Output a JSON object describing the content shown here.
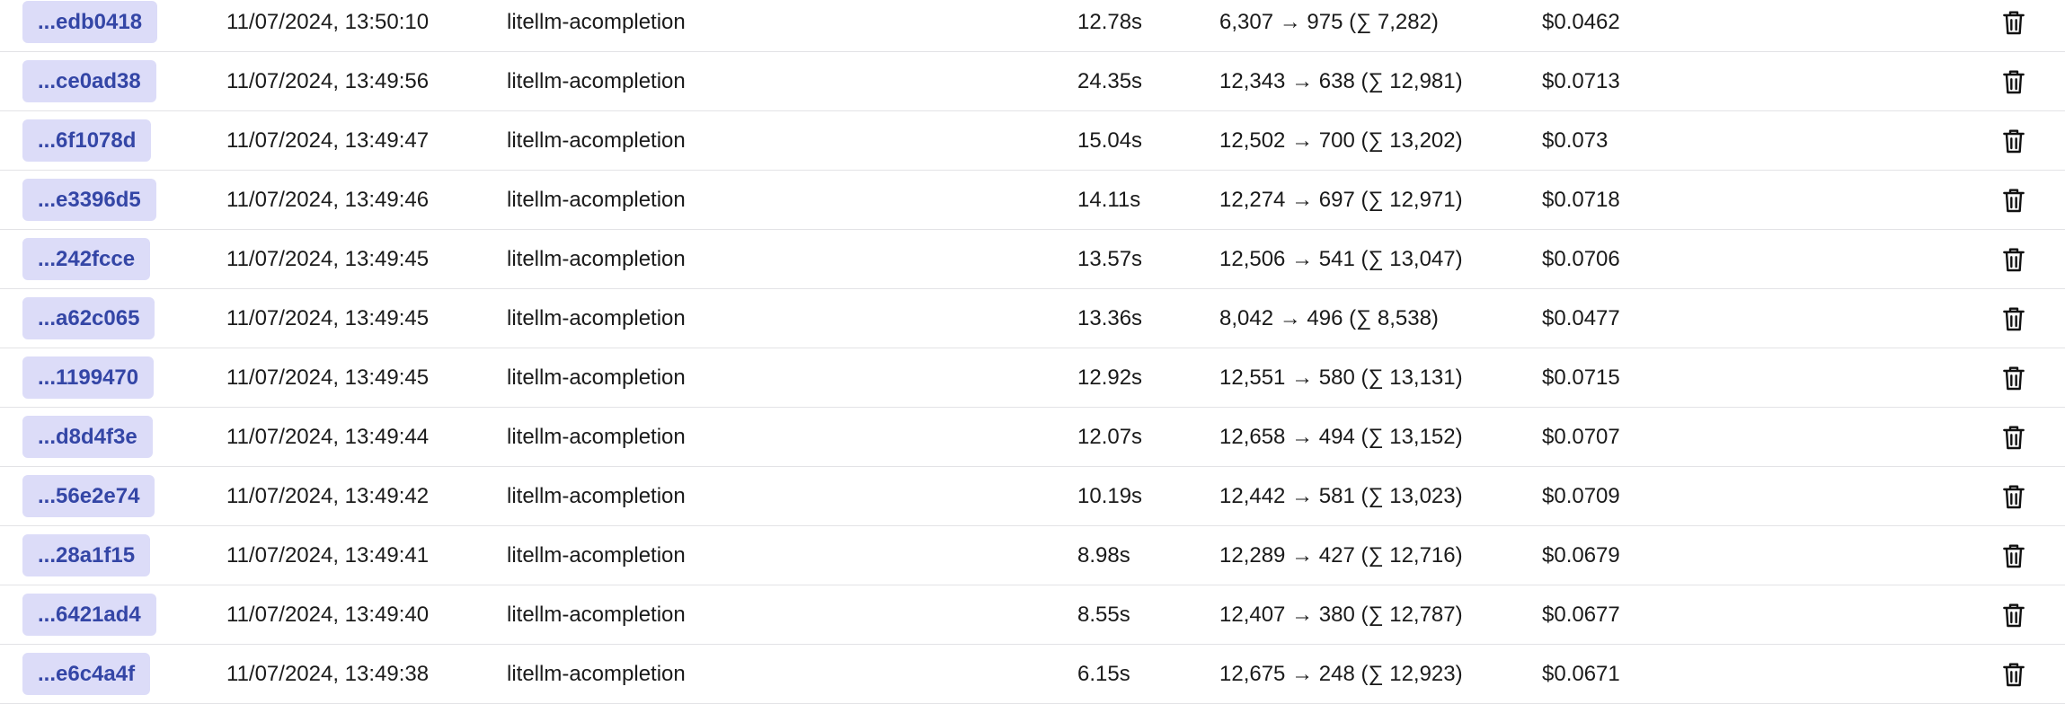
{
  "table": {
    "rows": [
      [
        "...edb0418",
        "11/07/2024, 13:50:10",
        "litellm-acompletion",
        "12.78s",
        "6,307 → 975 (∑ 7,282)",
        "$0.0462"
      ],
      [
        "...ce0ad38",
        "11/07/2024, 13:49:56",
        "litellm-acompletion",
        "24.35s",
        "12,343 → 638 (∑ 12,981)",
        "$0.0713"
      ],
      [
        "...6f1078d",
        "11/07/2024, 13:49:47",
        "litellm-acompletion",
        "15.04s",
        "12,502 → 700 (∑ 13,202)",
        "$0.073"
      ],
      [
        "...e3396d5",
        "11/07/2024, 13:49:46",
        "litellm-acompletion",
        "14.11s",
        "12,274 → 697 (∑ 12,971)",
        "$0.0718"
      ],
      [
        "...242fcce",
        "11/07/2024, 13:49:45",
        "litellm-acompletion",
        "13.57s",
        "12,506 → 541 (∑ 13,047)",
        "$0.0706"
      ],
      [
        "...a62c065",
        "11/07/2024, 13:49:45",
        "litellm-acompletion",
        "13.36s",
        "8,042 → 496 (∑ 8,538)",
        "$0.0477"
      ],
      [
        "...1199470",
        "11/07/2024, 13:49:45",
        "litellm-acompletion",
        "12.92s",
        "12,551 → 580 (∑ 13,131)",
        "$0.0715"
      ],
      [
        "...d8d4f3e",
        "11/07/2024, 13:49:44",
        "litellm-acompletion",
        "12.07s",
        "12,658 → 494 (∑ 13,152)",
        "$0.0707"
      ],
      [
        "...56e2e74",
        "11/07/2024, 13:49:42",
        "litellm-acompletion",
        "10.19s",
        "12,442 → 581 (∑ 13,023)",
        "$0.0709"
      ],
      [
        "...28a1f15",
        "11/07/2024, 13:49:41",
        "litellm-acompletion",
        "8.98s",
        "12,289 → 427 (∑ 12,716)",
        "$0.0679"
      ],
      [
        "...6421ad4",
        "11/07/2024, 13:49:40",
        "litellm-acompletion",
        "8.55s",
        "12,407 → 380 (∑ 12,787)",
        "$0.0677"
      ],
      [
        "...e6c4a4f",
        "11/07/2024, 13:49:38",
        "litellm-acompletion",
        "6.15s",
        "12,675 → 248 (∑ 12,923)",
        "$0.0671"
      ]
    ]
  }
}
